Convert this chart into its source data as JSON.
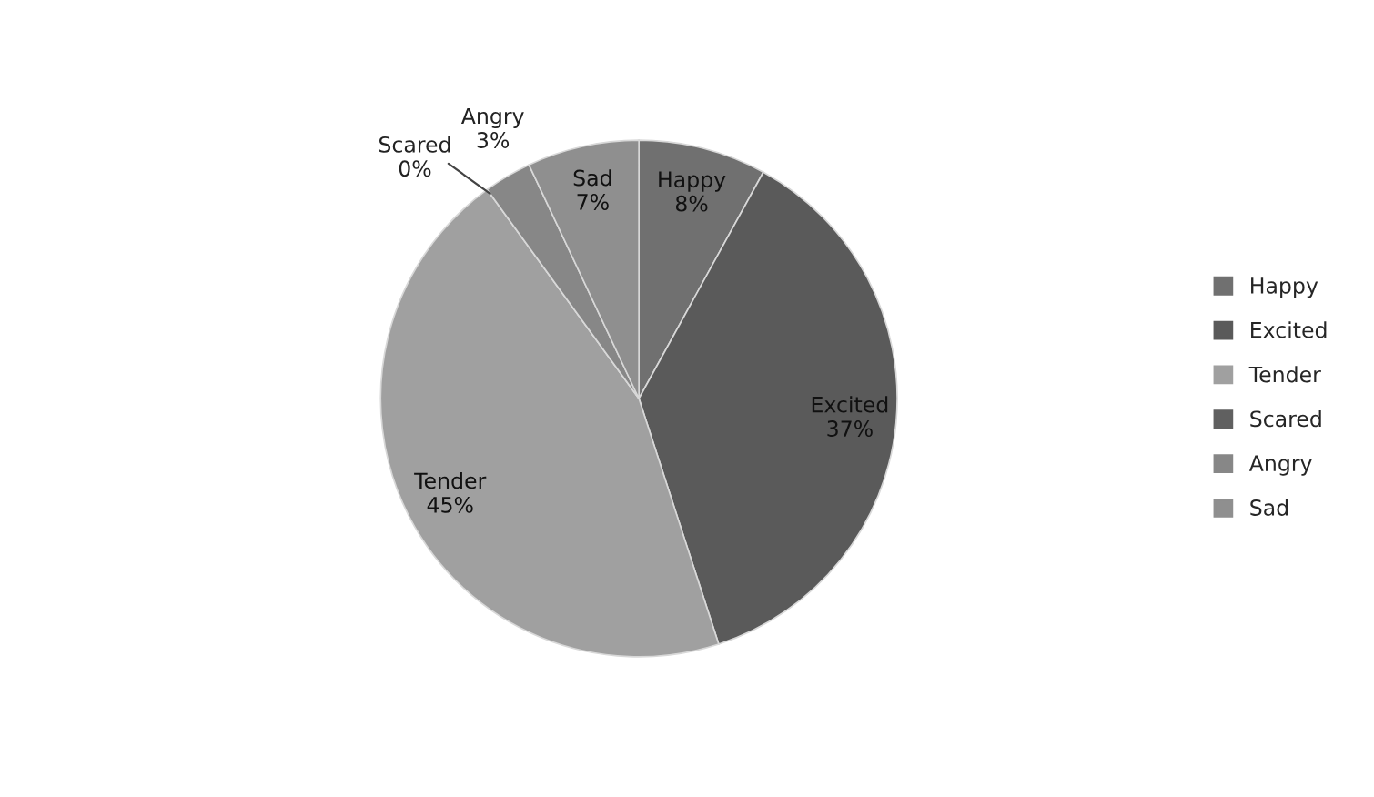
{
  "chart_data": {
    "type": "pie",
    "categories": [
      "Happy",
      "Excited",
      "Tender",
      "Scared",
      "Angry",
      "Sad"
    ],
    "values": [
      8,
      37,
      45,
      0,
      3,
      7
    ],
    "value_labels": [
      "8%",
      "37%",
      "45%",
      "0%",
      "3%",
      "7%"
    ],
    "colors": [
      "#707070",
      "#5a5a5a",
      "#a0a0a0",
      "#606060",
      "#878787",
      "#8f8f8f"
    ],
    "legend": "right"
  }
}
